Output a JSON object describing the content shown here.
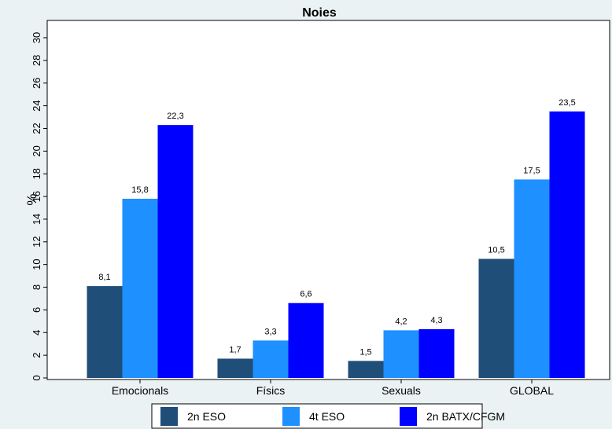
{
  "chart_data": {
    "type": "bar",
    "title": "Noies",
    "xlabel": "",
    "ylabel": "%",
    "ylim": [
      0,
      30
    ],
    "yticks": [
      0,
      2,
      4,
      6,
      8,
      10,
      12,
      14,
      16,
      18,
      20,
      22,
      24,
      26,
      28,
      30
    ],
    "categories": [
      "Emocionals",
      "Físics",
      "Sexuals",
      "GLOBAL"
    ],
    "series": [
      {
        "name": "2n ESO",
        "color": "#1f4e79",
        "values": [
          8.1,
          1.7,
          1.5,
          10.5
        ],
        "labels": [
          "8,1",
          "1,7",
          "1,5",
          "10,5"
        ]
      },
      {
        "name": "4t ESO",
        "color": "#1e90ff",
        "values": [
          15.8,
          3.3,
          4.2,
          17.5
        ],
        "labels": [
          "15,8",
          "3,3",
          "4,2",
          "17,5"
        ]
      },
      {
        "name": "2n BATX/CFGM",
        "color": "#0000ff",
        "values": [
          22.3,
          6.6,
          4.3,
          23.5
        ],
        "labels": [
          "22,3",
          "6,6",
          "4,3",
          "23,5"
        ]
      }
    ],
    "grid": false,
    "legend_position": "bottom",
    "background": "#eaf2f3"
  }
}
